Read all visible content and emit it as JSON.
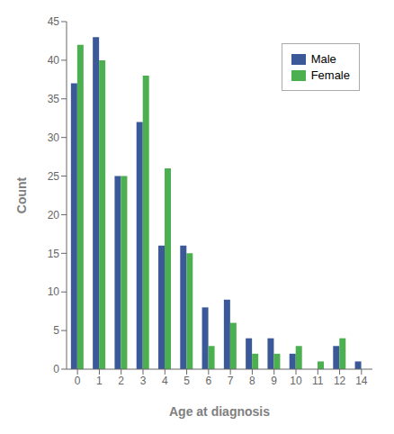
{
  "chart_data": {
    "type": "bar",
    "categories": [
      "0",
      "1",
      "2",
      "3",
      "4",
      "5",
      "6",
      "7",
      "8",
      "9",
      "10",
      "11",
      "12",
      "14"
    ],
    "series": [
      {
        "name": "Male",
        "color": "#3b5998",
        "values": [
          37,
          43,
          25,
          32,
          16,
          16,
          8,
          9,
          4,
          4,
          2,
          0,
          3,
          1
        ]
      },
      {
        "name": "Female",
        "color": "#4caf50",
        "values": [
          42,
          40,
          25,
          38,
          26,
          15,
          3,
          6,
          2,
          2,
          3,
          1,
          4,
          0
        ]
      }
    ],
    "xlabel": "Age at diagnosis",
    "ylabel": "Count",
    "ylim": [
      0,
      45
    ],
    "yticks": [
      0,
      5,
      10,
      15,
      20,
      25,
      30,
      35,
      40,
      45
    ],
    "grid": false,
    "legend": "upper right"
  }
}
